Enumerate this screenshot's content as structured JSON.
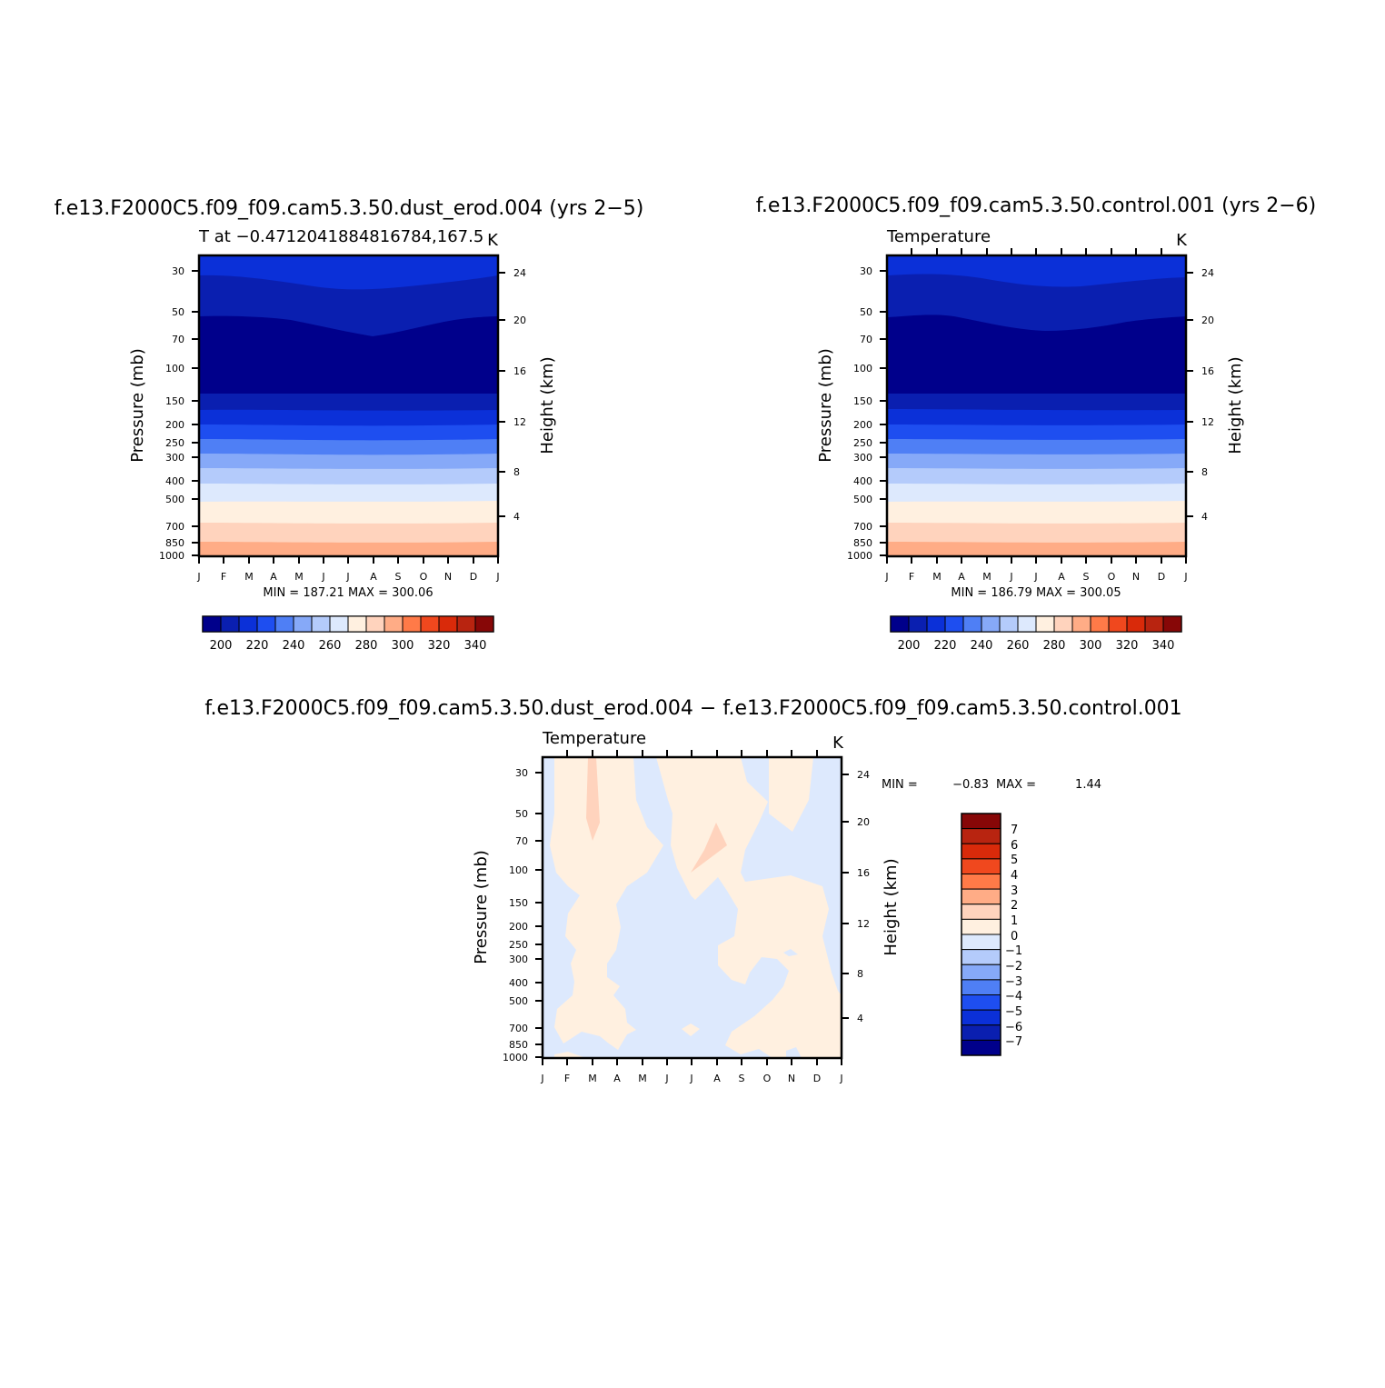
{
  "chart_data": [
    {
      "type": "heatmap",
      "title": "f.e13.F2000C5.f09_f09.cam5.3.50.dust_erod.004 (yrs 2−5)",
      "subtitle_left": "T at −0.4712041884816784,167.5",
      "subtitle_right": "K",
      "ylabel_left": "Pressure (mb)",
      "ylabel_right": "Height (km)",
      "pressure_ticks": [
        "30",
        "50",
        "70",
        "100",
        "150",
        "200",
        "250",
        "300",
        "400",
        "500",
        "700",
        "850",
        "1000"
      ],
      "height_ticks": [
        "24",
        "20",
        "16",
        "12",
        "8",
        "4"
      ],
      "month_ticks": [
        "J",
        "F",
        "M",
        "A",
        "M",
        "J",
        "J",
        "A",
        "S",
        "O",
        "N",
        "D",
        "J"
      ],
      "stats": "MIN = 187.21  MAX = 300.06",
      "min": 187.21,
      "max": 300.06,
      "colorbar_labels": [
        "200",
        "220",
        "240",
        "260",
        "280",
        "300",
        "320",
        "340"
      ]
    },
    {
      "type": "heatmap",
      "title": "f.e13.F2000C5.f09_f09.cam5.3.50.control.001 (yrs 2−6)",
      "subtitle_left": "Temperature",
      "subtitle_right": "K",
      "ylabel_left": "Pressure (mb)",
      "ylabel_right": "Height (km)",
      "pressure_ticks": [
        "30",
        "50",
        "70",
        "100",
        "150",
        "200",
        "250",
        "300",
        "400",
        "500",
        "700",
        "850",
        "1000"
      ],
      "height_ticks": [
        "24",
        "20",
        "16",
        "12",
        "8",
        "4"
      ],
      "month_ticks": [
        "J",
        "F",
        "M",
        "A",
        "M",
        "J",
        "J",
        "A",
        "S",
        "O",
        "N",
        "D",
        "J"
      ],
      "stats": "MIN = 186.79  MAX = 300.05",
      "min": 186.79,
      "max": 300.05,
      "colorbar_labels": [
        "200",
        "220",
        "240",
        "260",
        "280",
        "300",
        "320",
        "340"
      ]
    },
    {
      "type": "heatmap",
      "title": "f.e13.F2000C5.f09_f09.cam5.3.50.dust_erod.004 − f.e13.F2000C5.f09_f09.cam5.3.50.control.001",
      "subtitle_left": "Temperature",
      "subtitle_right": "K",
      "ylabel_left": "Pressure (mb)",
      "ylabel_right": "Height (km)",
      "pressure_ticks": [
        "30",
        "50",
        "70",
        "100",
        "150",
        "200",
        "250",
        "300",
        "400",
        "500",
        "700",
        "850",
        "1000"
      ],
      "height_ticks": [
        "24",
        "20",
        "16",
        "12",
        "8",
        "4"
      ],
      "month_ticks": [
        "J",
        "F",
        "M",
        "A",
        "M",
        "J",
        "J",
        "A",
        "S",
        "O",
        "N",
        "D",
        "J"
      ],
      "stats_min_label": "MIN =",
      "stats_min_value": "−0.83",
      "stats_max_label": "MAX =",
      "stats_max_value": "1.44",
      "min": -0.83,
      "max": 1.44,
      "colorbar_labels": [
        "7",
        "6",
        "5",
        "4",
        "3",
        "2",
        "1",
        "0",
        "−1",
        "−2",
        "−3",
        "−4",
        "−5",
        "−6",
        "−7"
      ]
    }
  ],
  "palette_abs": [
    "#00008b",
    "#0a1fb0",
    "#0b30d8",
    "#1e4ef0",
    "#4f7ff5",
    "#86a9f8",
    "#b4cbfb",
    "#dde9fd",
    "#fff0e0",
    "#ffd3bd",
    "#ffac86",
    "#ff7a48",
    "#f0481e",
    "#d92a0a",
    "#b82410",
    "#870707"
  ],
  "palette_diff": [
    "#870707",
    "#b82410",
    "#d92a0a",
    "#f0481e",
    "#ff7a48",
    "#ffac86",
    "#ffd3bd",
    "#fff0e0",
    "#dde9fd",
    "#b4cbfb",
    "#86a9f8",
    "#4f7ff5",
    "#1e4ef0",
    "#0b30d8",
    "#0a1fb0",
    "#00008b"
  ]
}
